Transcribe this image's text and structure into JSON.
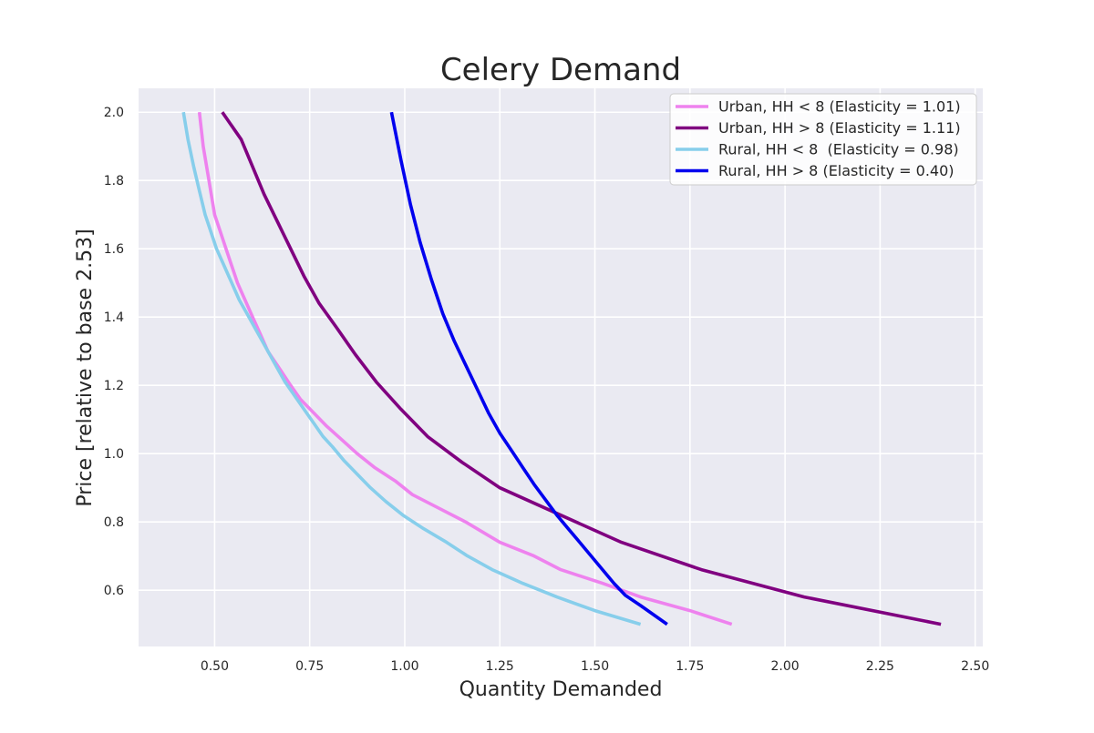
{
  "chart_data": {
    "type": "line",
    "title": "Celery Demand",
    "xlabel": "Quantity Demanded",
    "ylabel": "Price [relative to base 2.53]",
    "xlim": [
      0.3,
      2.52
    ],
    "ylim": [
      0.435,
      2.07
    ],
    "xticks": [
      0.5,
      0.75,
      1.0,
      1.25,
      1.5,
      1.75,
      2.0,
      2.25,
      2.5
    ],
    "xtick_labels": [
      "0.50",
      "0.75",
      "1.00",
      "1.25",
      "1.50",
      "1.75",
      "2.00",
      "2.25",
      "2.50"
    ],
    "yticks": [
      0.6,
      0.8,
      1.0,
      1.2,
      1.4,
      1.6,
      1.8,
      2.0
    ],
    "ytick_labels": [
      "0.6",
      "0.8",
      "1.0",
      "1.2",
      "1.4",
      "1.6",
      "1.8",
      "2.0"
    ],
    "grid": true,
    "legend_position": "top-right",
    "series": [
      {
        "name": "Urban, HH < 8 (Elasticity = 1.01)",
        "color": "#ee82ee",
        "x": [
          1.86,
          1.75,
          1.62,
          1.52,
          1.41,
          1.34,
          1.25,
          1.16,
          1.09,
          1.02,
          0.975,
          0.92,
          0.875,
          0.835,
          0.795,
          0.76,
          0.725,
          0.7,
          0.67,
          0.64,
          0.62,
          0.6,
          0.58,
          0.56,
          0.545,
          0.53,
          0.515,
          0.5,
          0.485,
          0.47,
          0.46
        ],
        "y": [
          0.5,
          0.54,
          0.58,
          0.62,
          0.66,
          0.7,
          0.74,
          0.8,
          0.84,
          0.88,
          0.92,
          0.96,
          1.0,
          1.04,
          1.08,
          1.12,
          1.16,
          1.2,
          1.25,
          1.3,
          1.35,
          1.4,
          1.45,
          1.5,
          1.55,
          1.6,
          1.65,
          1.7,
          1.8,
          1.9,
          2.0
        ]
      },
      {
        "name": "Urban, HH > 8 (Elasticity = 1.11)",
        "color": "#800080",
        "x": [
          2.41,
          2.05,
          1.78,
          1.57,
          1.41,
          1.25,
          1.15,
          1.06,
          0.99,
          0.925,
          0.87,
          0.82,
          0.775,
          0.735,
          0.7,
          0.665,
          0.63,
          0.6,
          0.57,
          0.545,
          0.52
        ],
        "y": [
          0.5,
          0.58,
          0.66,
          0.74,
          0.82,
          0.9,
          0.975,
          1.05,
          1.13,
          1.21,
          1.29,
          1.37,
          1.44,
          1.52,
          1.6,
          1.68,
          1.76,
          1.84,
          1.92,
          1.96,
          2.0
        ]
      },
      {
        "name": "Rural, HH < 8  (Elasticity = 0.98)",
        "color": "#87ceeb",
        "x": [
          1.62,
          1.5,
          1.4,
          1.31,
          1.23,
          1.165,
          1.11,
          1.05,
          0.995,
          0.95,
          0.91,
          0.875,
          0.84,
          0.81,
          0.785,
          0.76,
          0.735,
          0.71,
          0.685,
          0.665,
          0.645,
          0.625,
          0.605,
          0.585,
          0.565,
          0.545,
          0.525,
          0.505,
          0.49,
          0.475,
          0.46,
          0.445,
          0.43,
          0.418
        ],
        "y": [
          0.5,
          0.54,
          0.58,
          0.62,
          0.66,
          0.7,
          0.74,
          0.78,
          0.82,
          0.86,
          0.9,
          0.94,
          0.98,
          1.02,
          1.05,
          1.09,
          1.13,
          1.17,
          1.21,
          1.25,
          1.29,
          1.33,
          1.37,
          1.41,
          1.45,
          1.5,
          1.55,
          1.6,
          1.65,
          1.7,
          1.77,
          1.84,
          1.92,
          2.0
        ]
      },
      {
        "name": "Rural, HH > 8 (Elasticity = 0.40)",
        "color": "#0000ee",
        "x": [
          1.69,
          1.62,
          1.58,
          1.55,
          1.52,
          1.49,
          1.46,
          1.43,
          1.4,
          1.37,
          1.34,
          1.31,
          1.28,
          1.25,
          1.22,
          1.19,
          1.16,
          1.13,
          1.1,
          1.07,
          1.04,
          1.015,
          0.99,
          0.965
        ],
        "y": [
          0.5,
          0.555,
          0.585,
          0.62,
          0.66,
          0.7,
          0.74,
          0.78,
          0.82,
          0.865,
          0.91,
          0.96,
          1.01,
          1.06,
          1.12,
          1.19,
          1.26,
          1.33,
          1.41,
          1.51,
          1.62,
          1.73,
          1.86,
          2.0
        ]
      }
    ]
  }
}
